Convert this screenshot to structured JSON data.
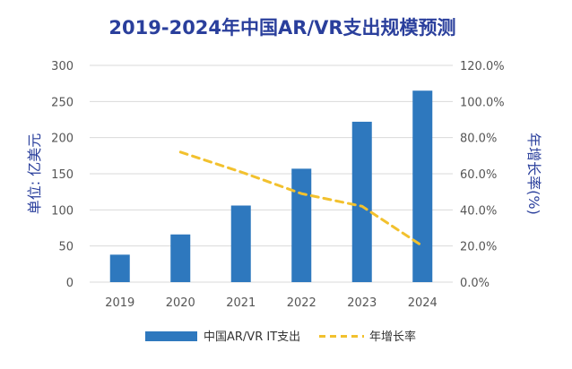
{
  "chart_data": {
    "type": "bar",
    "title": "2019-2024年中国AR/VR支出规模预测",
    "categories": [
      "2019",
      "2020",
      "2021",
      "2022",
      "2023",
      "2024"
    ],
    "series": [
      {
        "name": "中国AR/VR IT支出",
        "type": "bar",
        "axis": "left",
        "values": [
          38,
          66,
          106,
          157,
          222,
          265
        ],
        "color": "#2e78be"
      },
      {
        "name": "年增长率",
        "type": "line",
        "axis": "right",
        "style": "dashed",
        "values": [
          null,
          72,
          61,
          49,
          42,
          20
        ],
        "color": "#f2c12e"
      }
    ],
    "ylabel": "单位: 亿美元",
    "ylabel_right": "年增长率(%)",
    "ylim": [
      0,
      300
    ],
    "ylim_right": [
      0,
      120
    ],
    "yticks": [
      "0",
      "50",
      "100",
      "150",
      "200",
      "250",
      "300"
    ],
    "yticks_right": [
      "0.0%",
      "20.0%",
      "40.0%",
      "60.0%",
      "80.0%",
      "100.0%",
      "120.0%"
    ],
    "grid": true,
    "legend": "bottom"
  }
}
